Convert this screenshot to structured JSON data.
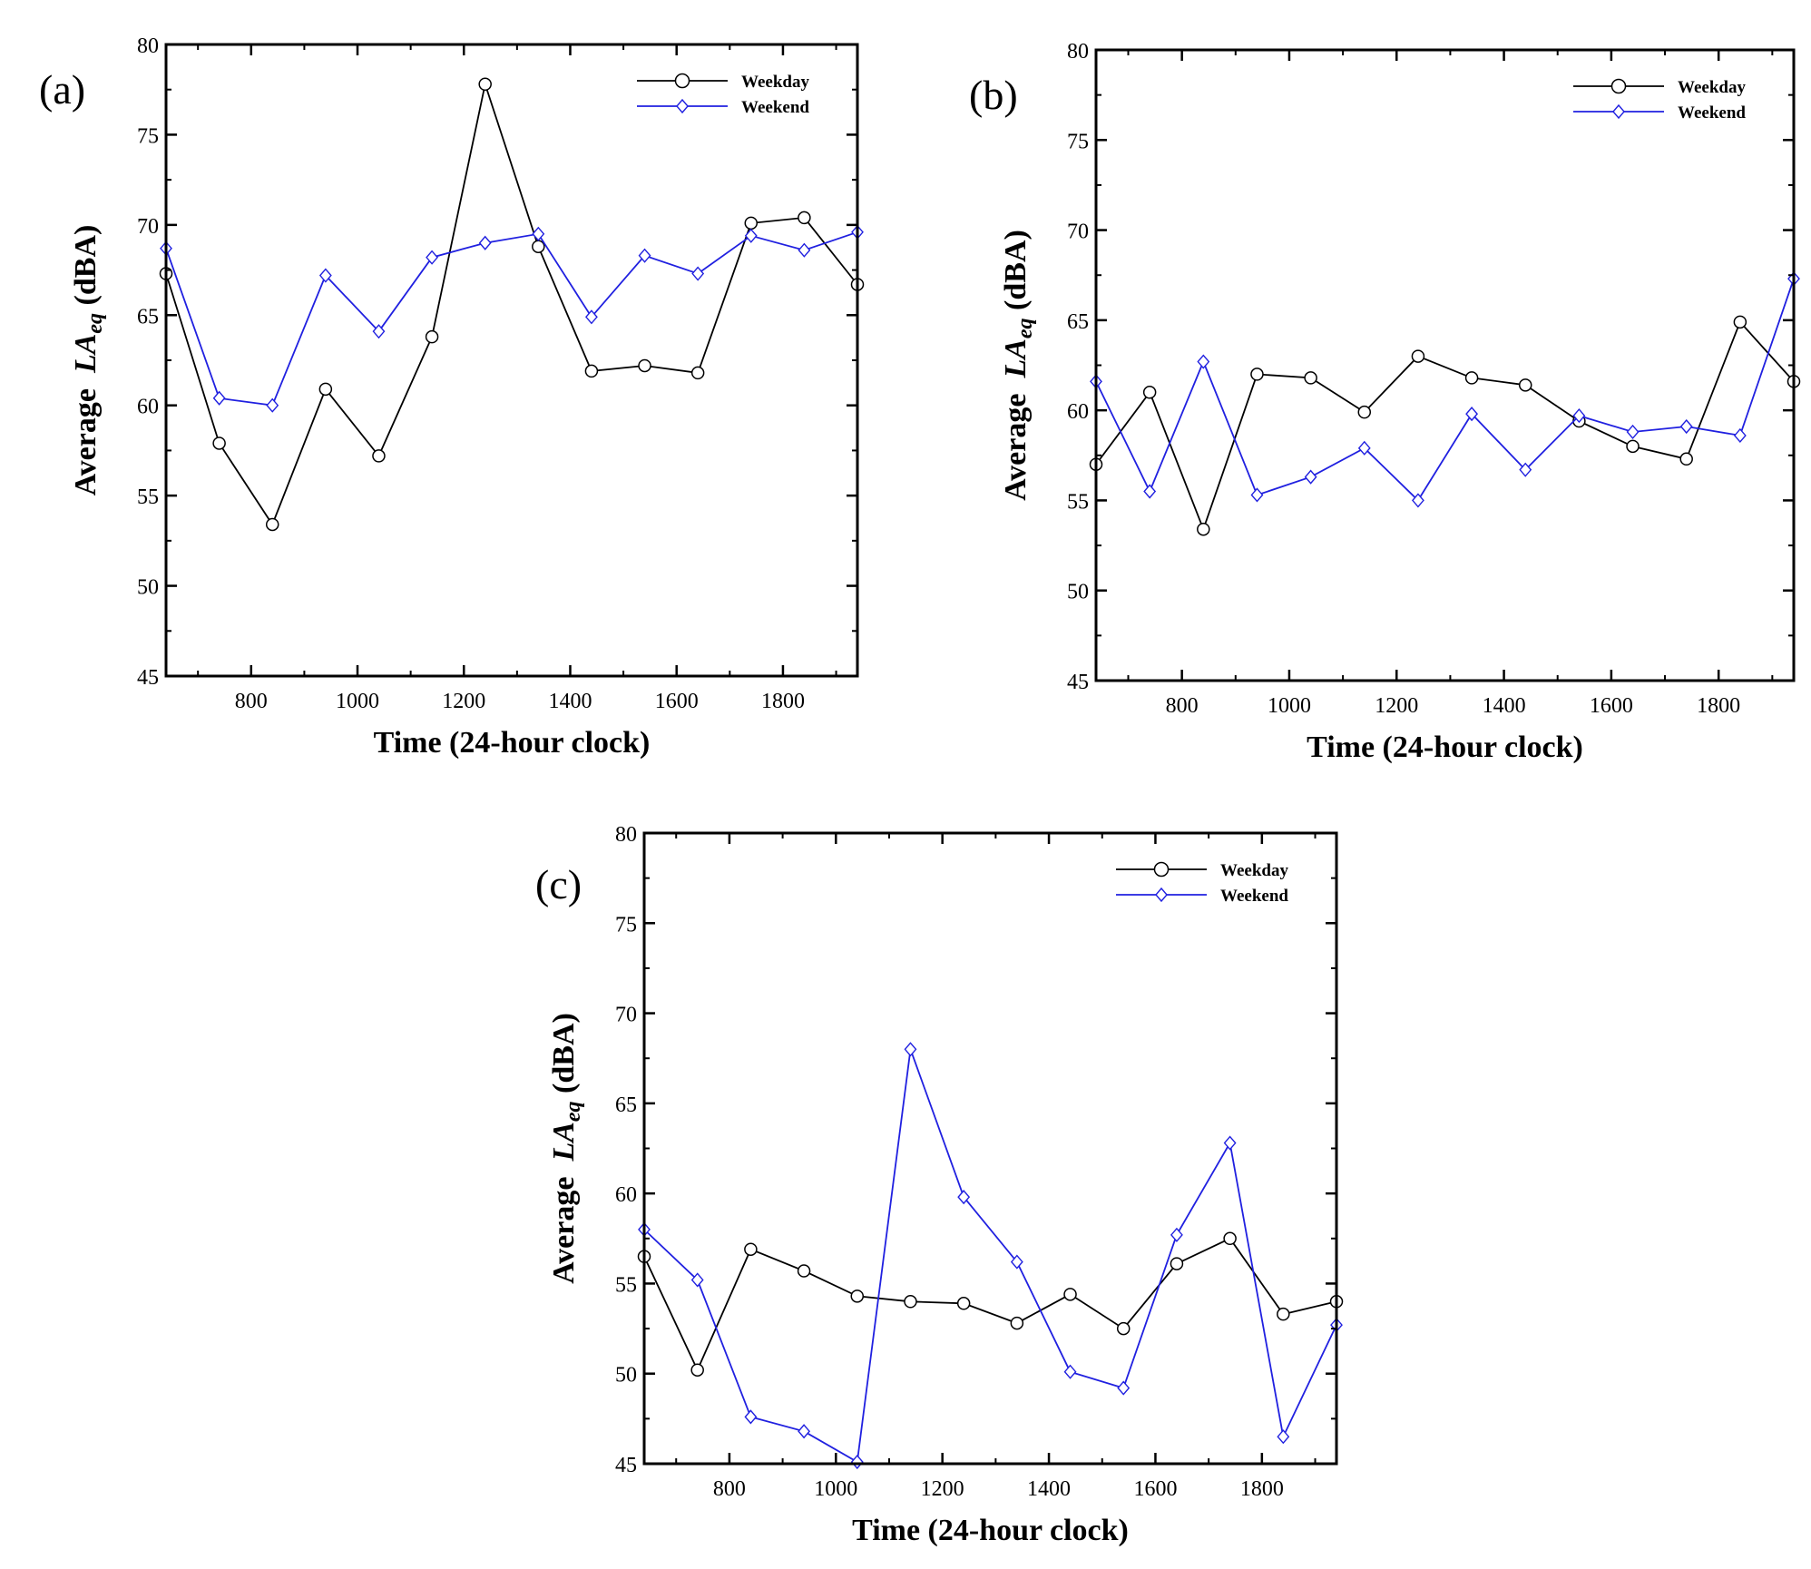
{
  "colors": {
    "weekday": "#000000",
    "weekend": "#2020e0"
  },
  "chart_data": [
    {
      "type": "line",
      "panel_label": "(a)",
      "xlabel": "Time (24-hour clock)",
      "ylabel_prefix": "Average",
      "ylabel_var": "LA",
      "ylabel_sub": "eq",
      "ylabel_unit": "(dBA)",
      "xlim": [
        640,
        1940
      ],
      "ylim": [
        45,
        80
      ],
      "xticks": [
        800,
        1000,
        1200,
        1400,
        1600,
        1800
      ],
      "yticks": [
        45,
        50,
        55,
        60,
        65,
        70,
        75,
        80
      ],
      "legend_position": "top-right",
      "x": [
        640,
        740,
        840,
        940,
        1040,
        1140,
        1240,
        1340,
        1440,
        1540,
        1640,
        1740,
        1840,
        1940
      ],
      "series": [
        {
          "name": "Weekday",
          "marker": "circle",
          "values": [
            67.3,
            57.9,
            53.4,
            60.9,
            57.2,
            63.8,
            77.8,
            68.8,
            61.9,
            62.2,
            61.8,
            70.1,
            70.4,
            66.7
          ]
        },
        {
          "name": "Weekend",
          "marker": "diamond",
          "values": [
            68.7,
            60.4,
            60.0,
            67.2,
            64.1,
            68.2,
            69.0,
            69.5,
            64.9,
            68.3,
            67.3,
            69.4,
            68.6,
            69.6
          ]
        }
      ]
    },
    {
      "type": "line",
      "panel_label": "(b)",
      "xlabel": "Time (24-hour clock)",
      "ylabel_prefix": "Average",
      "ylabel_var": "LA",
      "ylabel_sub": "eq",
      "ylabel_unit": "(dBA)",
      "xlim": [
        640,
        1940
      ],
      "ylim": [
        45,
        80
      ],
      "xticks": [
        800,
        1000,
        1200,
        1400,
        1600,
        1800
      ],
      "yticks": [
        45,
        50,
        55,
        60,
        65,
        70,
        75,
        80
      ],
      "legend_position": "top-right",
      "x": [
        640,
        740,
        840,
        940,
        1040,
        1140,
        1240,
        1340,
        1440,
        1540,
        1640,
        1740,
        1840,
        1940
      ],
      "series": [
        {
          "name": "Weekday",
          "marker": "circle",
          "values": [
            57.0,
            61.0,
            53.4,
            62.0,
            61.8,
            59.9,
            63.0,
            61.8,
            61.4,
            59.4,
            58.0,
            57.3,
            64.9,
            61.6
          ]
        },
        {
          "name": "Weekend",
          "marker": "diamond",
          "values": [
            61.6,
            55.5,
            62.7,
            55.3,
            56.3,
            57.9,
            55.0,
            59.8,
            56.7,
            59.7,
            58.8,
            59.1,
            58.6,
            67.3
          ]
        }
      ]
    },
    {
      "type": "line",
      "panel_label": "(c)",
      "xlabel": "Time (24-hour clock)",
      "ylabel_prefix": "Average",
      "ylabel_var": "LA",
      "ylabel_sub": "eq",
      "ylabel_unit": "(dBA)",
      "xlim": [
        640,
        1940
      ],
      "ylim": [
        45,
        80
      ],
      "xticks": [
        800,
        1000,
        1200,
        1400,
        1600,
        1800
      ],
      "yticks": [
        45,
        50,
        55,
        60,
        65,
        70,
        75,
        80
      ],
      "legend_position": "top-right",
      "x": [
        640,
        740,
        840,
        940,
        1040,
        1140,
        1240,
        1340,
        1440,
        1540,
        1640,
        1740,
        1840,
        1940
      ],
      "series": [
        {
          "name": "Weekday",
          "marker": "circle",
          "values": [
            56.5,
            50.2,
            56.9,
            55.7,
            54.3,
            54.0,
            53.9,
            52.8,
            54.4,
            52.5,
            56.1,
            57.5,
            53.3,
            54.0
          ]
        },
        {
          "name": "Weekend",
          "marker": "diamond",
          "values": [
            58.0,
            55.2,
            47.6,
            46.8,
            45.1,
            68.0,
            59.8,
            56.2,
            50.1,
            49.2,
            57.7,
            62.8,
            46.5,
            52.7
          ]
        }
      ]
    }
  ]
}
